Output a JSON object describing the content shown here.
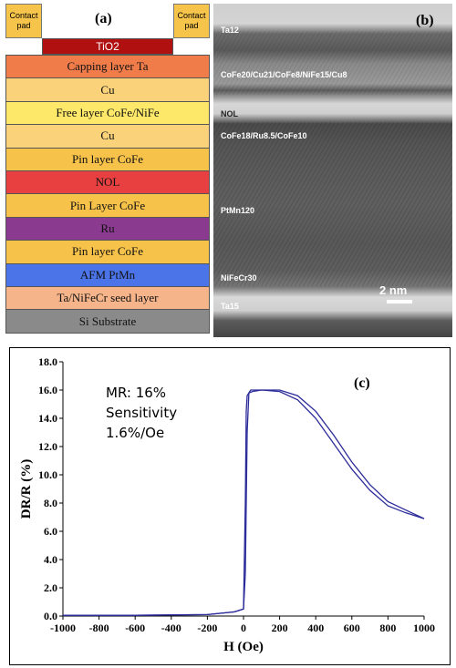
{
  "panel_a": {
    "label": "(a)",
    "contact_pad_left": "Contact pad",
    "contact_pad_right": "Contact pad",
    "tio2": "TiO2",
    "layers": [
      {
        "label": "Capping layer Ta",
        "color": "#f07c4a"
      },
      {
        "label": "Cu",
        "color": "#f9d27a"
      },
      {
        "label": "Free layer CoFe/NiFe",
        "color": "#fde86a"
      },
      {
        "label": "Cu",
        "color": "#f9d27a"
      },
      {
        "label": "Pin layer CoFe",
        "color": "#f7c24a"
      },
      {
        "label": "NOL",
        "color": "#e84040"
      },
      {
        "label": "Pin Layer CoFe",
        "color": "#f7c24a"
      },
      {
        "label": "Ru",
        "color": "#8a3a8f"
      },
      {
        "label": "Pin layer CoFe",
        "color": "#f7c24a"
      },
      {
        "label": "AFM PtMn",
        "color": "#4b74e8"
      },
      {
        "label": "Ta/NiFeCr seed layer",
        "color": "#f6b48a"
      },
      {
        "label": "Si Substrate",
        "color": "#8a8a8a"
      }
    ]
  },
  "panel_b": {
    "label": "(b)",
    "annotations": [
      "Ta12",
      "CoFe20/Cu21/CoFe8/NiFe15/Cu8",
      "NOL",
      "CoFe18/Ru8.5/CoFe10",
      "PtMn120",
      "NiFeCr30",
      "Ta15"
    ],
    "scale_bar": "2 nm"
  },
  "panel_c": {
    "label": "(c)",
    "mr_lines": [
      "MR: 16%",
      "Sensitivity",
      "1.6%/Oe"
    ],
    "ylabel": "DR/R (%)",
    "xlabel": "H (Oe)"
  },
  "chart_data": {
    "type": "line",
    "xlabel": "H (Oe)",
    "ylabel": "DR/R (%)",
    "xlim": [
      -1000,
      1000
    ],
    "ylim": [
      0,
      18
    ],
    "x_ticks": [
      -1000,
      -800,
      -600,
      -400,
      -200,
      0,
      200,
      400,
      600,
      800,
      1000
    ],
    "y_ticks": [
      "0.0",
      "2.0",
      "4.0",
      "6.0",
      "8.0",
      "10.0",
      "12.0",
      "14.0",
      "16.0",
      "18.0"
    ],
    "line_color": "#2b2b9a",
    "series": [
      {
        "x": [
          -1000,
          -600,
          -200,
          -50,
          0,
          10,
          20,
          30,
          40,
          60,
          100,
          200,
          300,
          400,
          500,
          600,
          700,
          800,
          900,
          1000
        ],
        "y": [
          0.05,
          0.05,
          0.1,
          0.3,
          0.5,
          3.0,
          13.0,
          15.8,
          16.0,
          16.0,
          16.0,
          16.0,
          15.6,
          14.5,
          12.8,
          10.9,
          9.3,
          8.1,
          7.5,
          6.9
        ]
      },
      {
        "x": [
          -1000,
          -600,
          -200,
          -50,
          0,
          10,
          15,
          20,
          30,
          50,
          100,
          200,
          300,
          400,
          500,
          600,
          700,
          800,
          900,
          1000
        ],
        "y": [
          0.05,
          0.05,
          0.1,
          0.3,
          0.5,
          8.0,
          14.5,
          15.6,
          15.8,
          15.9,
          16.0,
          15.9,
          15.3,
          14.0,
          12.2,
          10.4,
          8.9,
          7.8,
          7.3,
          6.9
        ]
      }
    ]
  }
}
